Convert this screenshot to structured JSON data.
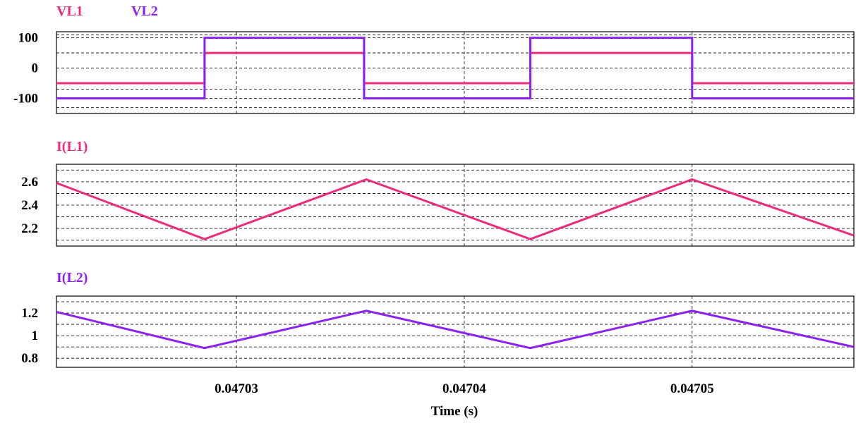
{
  "colors": {
    "vl1": "#ee2a7b",
    "vl2": "#8b22f2",
    "axis": "#000000",
    "grid": "#000000"
  },
  "chart_data": [
    {
      "type": "line",
      "title": "",
      "xlabel": "",
      "ylabel": "",
      "xlim": [
        0.0470221,
        0.0470571
      ],
      "ylim": [
        -150,
        120
      ],
      "yticks": [
        100,
        0,
        -100
      ],
      "ytick_labels": [
        "100",
        "0",
        "-100"
      ],
      "grid": true,
      "legend": "top-left",
      "series": [
        {
          "name": "VL1",
          "color": "#ee2a7b",
          "x": [
            0.0470221,
            0.0470286,
            0.0470286,
            0.0470356,
            0.0470356,
            0.0470429,
            0.0470429,
            0.04705,
            0.04705,
            0.0470571
          ],
          "y": [
            -50,
            -50,
            50,
            50,
            -50,
            -50,
            50,
            50,
            -50,
            -50
          ]
        },
        {
          "name": "VL2",
          "color": "#8b22f2",
          "x": [
            0.0470221,
            0.0470286,
            0.0470286,
            0.0470356,
            0.0470356,
            0.0470429,
            0.0470429,
            0.04705,
            0.04705,
            0.0470571
          ],
          "y": [
            -100,
            -100,
            100,
            100,
            -100,
            -100,
            100,
            100,
            -100,
            -100
          ]
        }
      ]
    },
    {
      "type": "line",
      "title": "",
      "xlabel": "",
      "ylabel": "",
      "xlim": [
        0.0470221,
        0.0470571
      ],
      "ylim": [
        2.05,
        2.75
      ],
      "yticks": [
        2.6,
        2.4,
        2.2
      ],
      "ytick_labels": [
        "2.6",
        "2.4",
        "2.2"
      ],
      "grid": true,
      "legend": "top-left",
      "series": [
        {
          "name": "I(L1)",
          "color": "#ee2a7b",
          "x": [
            0.0470221,
            0.0470286,
            0.0470357,
            0.0470429,
            0.04705,
            0.0470571
          ],
          "y": [
            2.59,
            2.11,
            2.62,
            2.11,
            2.62,
            2.14
          ]
        }
      ]
    },
    {
      "type": "line",
      "title": "",
      "xlabel": "Time (s)",
      "ylabel": "",
      "xlim": [
        0.0470221,
        0.0470571
      ],
      "ylim": [
        0.72,
        1.35
      ],
      "xticks": [
        0.04703,
        0.04704,
        0.04705
      ],
      "xtick_labels": [
        "0.04703",
        "0.04704",
        "0.04705"
      ],
      "yticks": [
        1.2,
        1,
        0.8
      ],
      "ytick_labels": [
        "1.2",
        "1",
        "0.8"
      ],
      "grid": true,
      "legend": "top-left",
      "series": [
        {
          "name": "I(L2)",
          "color": "#8b22f2",
          "x": [
            0.0470221,
            0.0470286,
            0.0470357,
            0.0470429,
            0.04705,
            0.0470571
          ],
          "y": [
            1.21,
            0.89,
            1.22,
            0.89,
            1.22,
            0.9
          ]
        }
      ]
    }
  ]
}
